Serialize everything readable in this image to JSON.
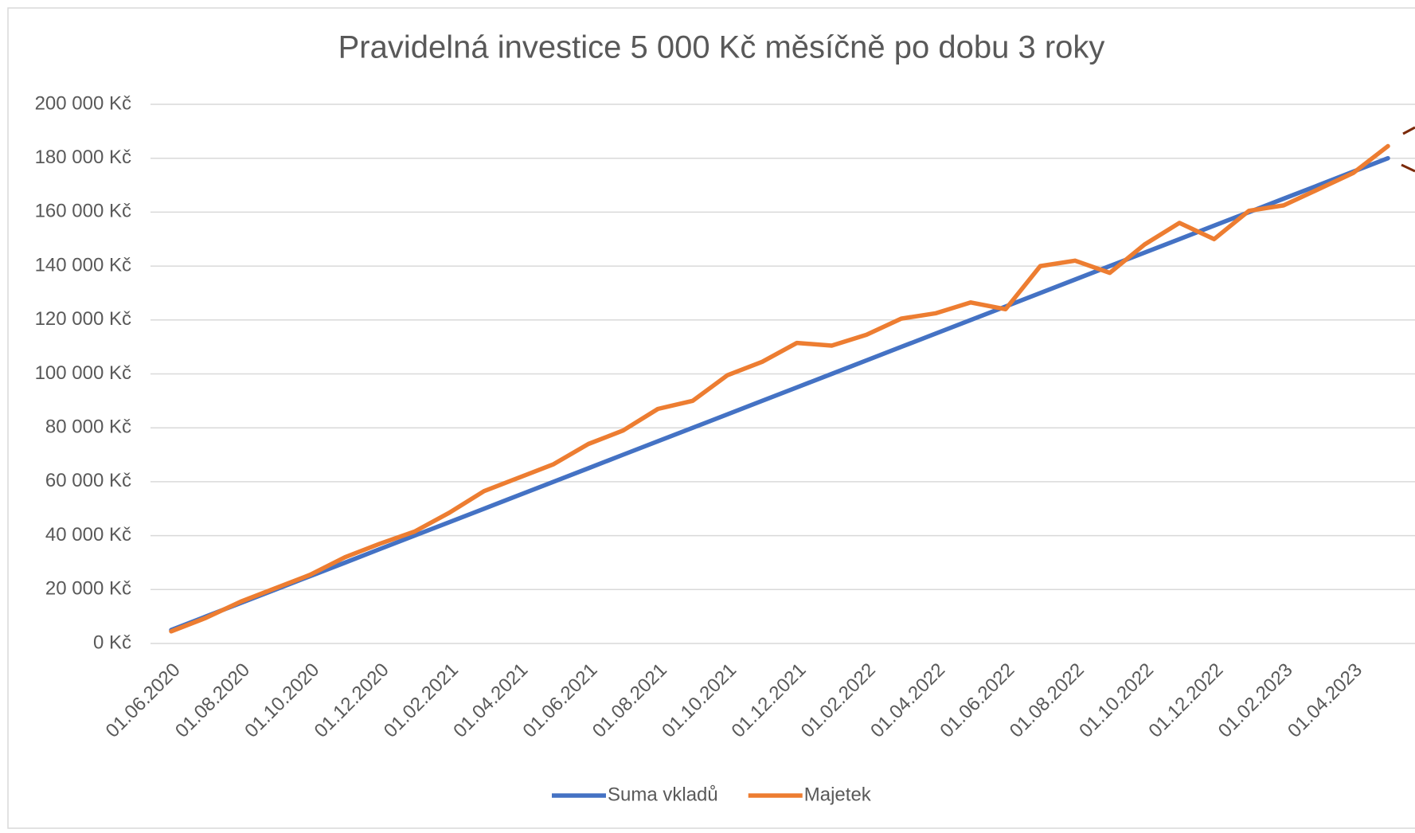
{
  "chart_data": {
    "type": "line",
    "title": "Pravidelná investice 5 000 Kč měsíčně po dobu 3 roky",
    "categories": [
      "01.06.2020",
      null,
      "01.08.2020",
      null,
      "01.10.2020",
      null,
      "01.12.2020",
      null,
      "01.02.2021",
      null,
      "01.04.2021",
      null,
      "01.06.2021",
      null,
      "01.08.2021",
      null,
      "01.10.2021",
      null,
      "01.12.2021",
      null,
      "01.02.2022",
      null,
      "01.04.2022",
      null,
      "01.06.2022",
      null,
      "01.08.2022",
      null,
      "01.10.2022",
      null,
      "01.12.2022",
      null,
      "01.02.2023",
      null,
      "01.04.2023",
      null
    ],
    "series": [
      {
        "name": "Suma vkladů",
        "color": "#4472c4",
        "values": [
          5000,
          10000,
          15000,
          20000,
          25000,
          30000,
          35000,
          40000,
          45000,
          50000,
          55000,
          60000,
          65000,
          70000,
          75000,
          80000,
          85000,
          90000,
          95000,
          100000,
          105000,
          110000,
          115000,
          120000,
          125000,
          130000,
          135000,
          140000,
          145000,
          150000,
          155000,
          160000,
          165000,
          170000,
          175000,
          180000
        ]
      },
      {
        "name": "Majetek",
        "color": "#ed7d31",
        "values": [
          4500,
          9500,
          15500,
          20500,
          25500,
          32000,
          37000,
          41500,
          48500,
          56500,
          61500,
          66500,
          74000,
          79000,
          87000,
          90000,
          99500,
          104500,
          111500,
          110500,
          114500,
          120500,
          122500,
          126500,
          124000,
          140000,
          142000,
          137500,
          148000,
          156000,
          150000,
          160500,
          162500,
          168500,
          174500,
          184500
        ]
      }
    ],
    "ylim": [
      0,
      200000
    ],
    "yticks": [
      {
        "value": 0,
        "label": "0 Kč"
      },
      {
        "value": 20000,
        "label": "20 000 Kč"
      },
      {
        "value": 40000,
        "label": "40 000 Kč"
      },
      {
        "value": 60000,
        "label": "60 000 Kč"
      },
      {
        "value": 80000,
        "label": "80 000 Kč"
      },
      {
        "value": 100000,
        "label": "100 000 Kč"
      },
      {
        "value": 120000,
        "label": "120 000 Kč"
      },
      {
        "value": 140000,
        "label": "140 000 Kč"
      },
      {
        "value": 160000,
        "label": "160 000 Kč"
      },
      {
        "value": 180000,
        "label": "180 000 Kč"
      },
      {
        "value": 200000,
        "label": "200 000 Kč"
      }
    ],
    "grid": true,
    "legend": "bottom"
  }
}
